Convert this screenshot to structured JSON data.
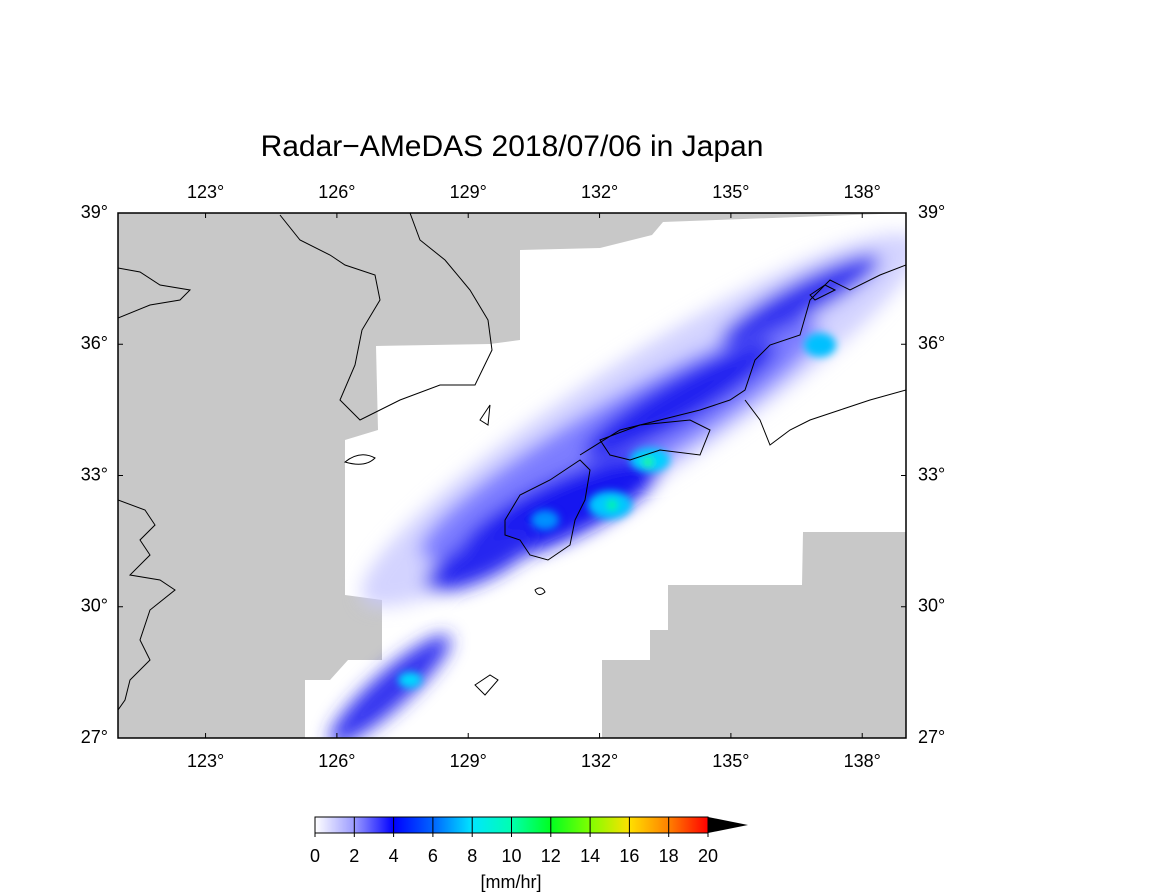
{
  "map": {
    "title": "Radar−AMeDAS 2018/07/06 in Japan",
    "xlim": [
      121,
      139
    ],
    "ylim": [
      27,
      39
    ],
    "xticks": [
      {
        "value": 123,
        "label": "123°"
      },
      {
        "value": 126,
        "label": "126°"
      },
      {
        "value": 129,
        "label": "129°"
      },
      {
        "value": 132,
        "label": "132°"
      },
      {
        "value": 135,
        "label": "135°"
      },
      {
        "value": 138,
        "label": "138°"
      }
    ],
    "yticks": [
      {
        "value": 27,
        "label": "27°"
      },
      {
        "value": 30,
        "label": "30°"
      },
      {
        "value": 33,
        "label": "33°"
      },
      {
        "value": 36,
        "label": "36°"
      },
      {
        "value": 39,
        "label": "39°"
      }
    ]
  },
  "colorbar": {
    "lim": [
      0,
      20
    ],
    "ticks": [
      0,
      2,
      4,
      6,
      8,
      10,
      12,
      14,
      16,
      18,
      20
    ],
    "label": "[mm/hr]"
  }
}
